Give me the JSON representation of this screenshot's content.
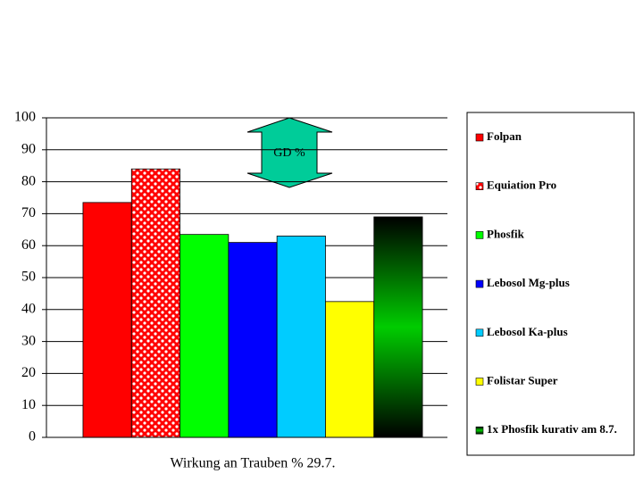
{
  "chart_data": {
    "type": "bar",
    "categories": [
      "Wirkung an Trauben % 29.7."
    ],
    "series": [
      {
        "name": "Folpan",
        "color": "#ff0000",
        "values": [
          73.5
        ]
      },
      {
        "name": "Equiation Pro",
        "color": "#ff0000",
        "pattern": "dots",
        "values": [
          84
        ]
      },
      {
        "name": "Phosfik",
        "color": "#00ff00",
        "values": [
          63.5
        ]
      },
      {
        "name": "Lebosol Mg-plus",
        "color": "#0000ff",
        "values": [
          61
        ]
      },
      {
        "name": "Lebosol Ka-plus",
        "color": "#00ccff",
        "values": [
          63
        ]
      },
      {
        "name": "Folistar Super",
        "color": "#ffff00",
        "values": [
          42.5
        ]
      },
      {
        "name": "1x Phosfik kurativ am 8.7.",
        "color": "#00cc00",
        "gradient_to": "#000000",
        "values": [
          69
        ]
      }
    ],
    "ylim": [
      0,
      100
    ],
    "yticks": [
      0,
      10,
      20,
      30,
      40,
      50,
      60,
      70,
      80,
      90,
      100
    ],
    "grid": true,
    "annotation": "GD %",
    "legend": "right"
  }
}
